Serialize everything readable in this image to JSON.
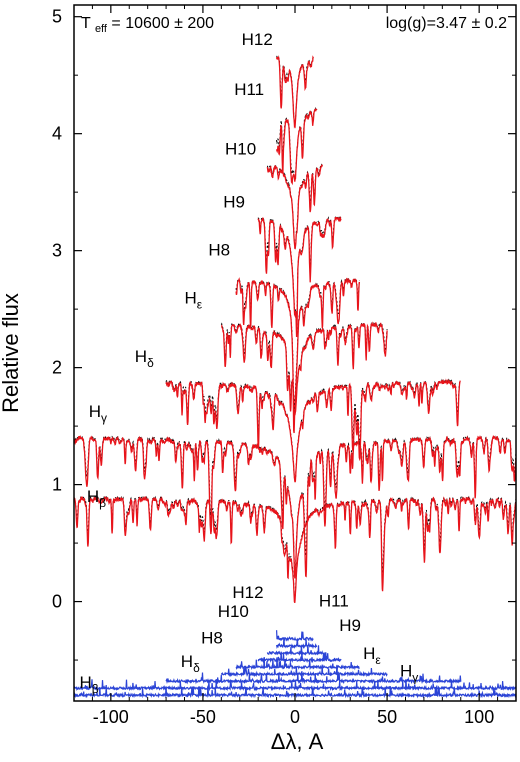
{
  "chart_data": {
    "type": "line",
    "xlabel": "Δλ, A",
    "ylabel": "Relative flux",
    "xlim": [
      -120,
      120
    ],
    "ylim": [
      -0.85,
      5.1
    ],
    "x_ticks": [
      -100,
      -50,
      0,
      50,
      100
    ],
    "x_tick_labels": [
      "-100",
      "-50",
      "0",
      "50",
      "100"
    ],
    "y_ticks": [
      0,
      1,
      2,
      3,
      4,
      5
    ],
    "y_tick_labels": [
      "0",
      "1",
      "2",
      "3",
      "4",
      "5"
    ],
    "grid": false,
    "annotations": {
      "teff": {
        "prefix": "T",
        "sub": "eff",
        "rest": " = 10600 ± 200"
      },
      "logg": "log(g)=3.47 ± 0.2"
    },
    "colors": {
      "observed": "#e8141b",
      "model": "#000000",
      "residual": "#2b44d6"
    },
    "profiles": [
      {
        "line": "Hβ",
        "label_main": "H",
        "label_sub": "β",
        "offset": 0.9,
        "xmin": -120,
        "xmax": 120,
        "width": 4.0,
        "depth": 0.88,
        "label_x": -113,
        "label_y": 0.85
      },
      {
        "line": "Hγ",
        "label_main": "H",
        "label_sub": "γ",
        "offset": 1.42,
        "xmin": -120,
        "xmax": 120,
        "width": 4.0,
        "depth": 1.15,
        "label_x": -112,
        "label_y": 1.58
      },
      {
        "line": "Hδ",
        "label_main": "H",
        "label_sub": "δ",
        "offset": 1.9,
        "xmin": -70,
        "xmax": 90,
        "width": 3.5,
        "depth": 0.96,
        "label_x": -87,
        "label_y": 2.05
      },
      {
        "line": "Hε",
        "label_main": "H",
        "label_sub": "ε",
        "offset": 2.4,
        "xmin": -40,
        "xmax": 50,
        "width": 3.0,
        "depth": 0.87,
        "label_x": -60,
        "label_y": 2.55
      },
      {
        "line": "H8",
        "label_main": "H8",
        "label_sub": "",
        "offset": 2.78,
        "xmin": -32,
        "xmax": 35,
        "width": 2.6,
        "depth": 0.83,
        "label_x": -47,
        "label_y": 2.96
      },
      {
        "line": "H9",
        "label_main": "H9",
        "label_sub": "",
        "offset": 3.32,
        "xmin": -20,
        "xmax": 25,
        "width": 2.3,
        "depth": 0.9,
        "label_x": -39,
        "label_y": 3.37
      },
      {
        "line": "H10",
        "label_main": "H10",
        "label_sub": "",
        "offset": 3.78,
        "xmin": -15,
        "xmax": 15,
        "width": 2.1,
        "depth": 0.83,
        "label_x": -38,
        "label_y": 3.82
      },
      {
        "line": "H11",
        "label_main": "H11",
        "label_sub": "",
        "offset": 4.25,
        "xmin": -10,
        "xmax": 12,
        "width": 1.9,
        "depth": 0.7,
        "label_x": -33,
        "label_y": 4.33
      },
      {
        "line": "H12",
        "label_main": "H12",
        "label_sub": "",
        "offset": 4.7,
        "xmin": -10,
        "xmax": 10,
        "width": 1.7,
        "depth": 0.67,
        "label_x": -29,
        "label_y": 4.76
      }
    ],
    "residuals": {
      "baseline": -0.8,
      "step": 0.06,
      "labels": [
        {
          "main": "H",
          "sub": "β",
          "x": -117,
          "y": -0.74
        },
        {
          "main": "H",
          "sub": "γ",
          "x": 57,
          "y": -0.64
        },
        {
          "main": "H",
          "sub": "δ",
          "x": -62,
          "y": -0.56
        },
        {
          "main": "H",
          "sub": "ε",
          "x": 37,
          "y": -0.49
        },
        {
          "main": "H8",
          "sub": "",
          "x": -51,
          "y": -0.36
        },
        {
          "main": "H9",
          "sub": "",
          "x": 24,
          "y": -0.25
        },
        {
          "main": "H10",
          "sub": "",
          "x": -42,
          "y": -0.13
        },
        {
          "main": "H11",
          "sub": "",
          "x": 13,
          "y": -0.04
        },
        {
          "main": "H12",
          "sub": "",
          "x": -34,
          "y": 0.03
        }
      ]
    }
  }
}
